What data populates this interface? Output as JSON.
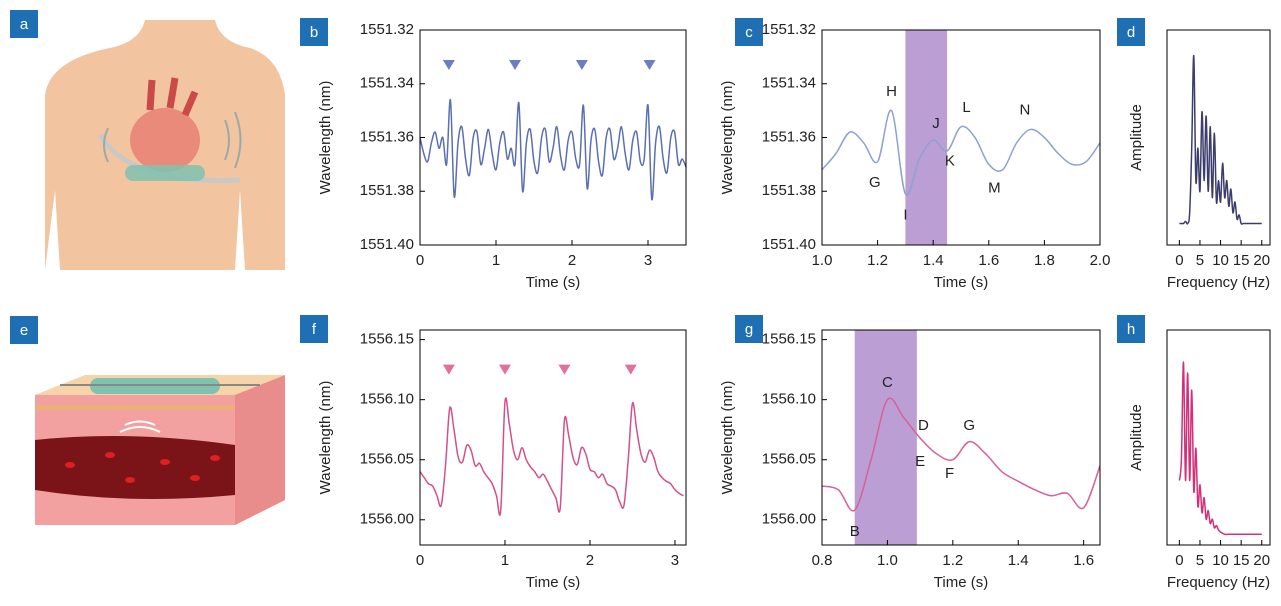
{
  "illustrations": [
    {
      "panel": "a"
    },
    {
      "panel": "e"
    }
  ],
  "chart_data": [
    {
      "panel": "b",
      "type": "line",
      "color": "#5b6fb3",
      "xlabel": "Time (s)",
      "ylabel": "Wavelength (nm)",
      "xlim": [
        0,
        3.5
      ],
      "xticks": [
        0,
        1,
        2,
        3
      ],
      "ylim": [
        1551.4,
        1551.32
      ],
      "yticks": [
        1551.32,
        1551.34,
        1551.36,
        1551.38,
        {
          "value": 1551.4,
          "label": "1551.40"
        }
      ],
      "x": [
        0,
        0.05,
        0.1,
        0.15,
        0.2,
        0.25,
        0.3,
        0.35,
        0.4,
        0.45,
        0.5,
        0.55,
        0.6,
        0.65,
        0.7,
        0.75,
        0.8,
        0.85,
        0.9,
        0.95,
        1,
        1.05,
        1.1,
        1.15,
        1.2,
        1.25,
        1.3,
        1.35,
        1.4,
        1.45,
        1.5,
        1.55,
        1.6,
        1.65,
        1.7,
        1.75,
        1.8,
        1.85,
        1.9,
        1.95,
        2,
        2.05,
        2.1,
        2.15,
        2.2,
        2.25,
        2.3,
        2.35,
        2.4,
        2.45,
        2.5,
        2.55,
        2.6,
        2.65,
        2.7,
        2.75,
        2.8,
        2.85,
        2.9,
        2.95,
        3,
        3.05,
        3.1,
        3.15,
        3.2,
        3.25,
        3.3,
        3.35,
        3.4,
        3.45,
        3.5
      ],
      "values": [
        1551.36,
        1551.366,
        1551.369,
        1551.362,
        1551.358,
        1551.364,
        1551.36,
        1551.37,
        1551.346,
        1551.382,
        1551.362,
        1551.356,
        1551.368,
        1551.374,
        1551.36,
        1551.358,
        1551.37,
        1551.364,
        1551.357,
        1551.366,
        1551.372,
        1551.362,
        1551.358,
        1551.368,
        1551.364,
        1551.37,
        1551.347,
        1551.38,
        1551.362,
        1551.357,
        1551.369,
        1551.373,
        1551.36,
        1551.357,
        1551.369,
        1551.364,
        1551.356,
        1551.367,
        1551.372,
        1551.361,
        1551.358,
        1551.368,
        1551.37,
        1551.348,
        1551.379,
        1551.361,
        1551.357,
        1551.369,
        1551.374,
        1551.36,
        1551.357,
        1551.368,
        1551.364,
        1551.356,
        1551.366,
        1551.372,
        1551.361,
        1551.358,
        1551.369,
        1551.368,
        1551.348,
        1551.383,
        1551.362,
        1551.356,
        1551.368,
        1551.373,
        1551.36,
        1551.358,
        1551.37,
        1551.368,
        1551.371
      ],
      "markers": {
        "x": [
          0.38,
          1.25,
          2.13,
          3.02
        ],
        "y": 1551.333,
        "color": "#6a7fc2"
      }
    },
    {
      "panel": "c",
      "type": "line",
      "color": "#8fa0d2",
      "xlabel": "Time (s)",
      "ylabel": "Wavelength (nm)",
      "xlim": [
        1,
        2
      ],
      "xticks": [
        {
          "value": 1,
          "label": "1.0"
        },
        1.2,
        1.4,
        1.6,
        1.8,
        {
          "value": 2,
          "label": "2.0"
        }
      ],
      "ylim": [
        1551.4,
        1551.32
      ],
      "yticks": [
        1551.32,
        1551.34,
        1551.36,
        1551.38,
        {
          "value": 1551.4,
          "label": "1551.40"
        }
      ],
      "x": [
        1,
        1.05,
        1.1,
        1.15,
        1.2,
        1.25,
        1.3,
        1.35,
        1.4,
        1.45,
        1.5,
        1.55,
        1.6,
        1.65,
        1.7,
        1.75,
        1.8,
        1.85,
        1.9,
        1.95,
        2
      ],
      "values": [
        1551.372,
        1551.366,
        1551.358,
        1551.362,
        1551.369,
        1551.35,
        1551.381,
        1551.368,
        1551.361,
        1551.365,
        1551.356,
        1551.36,
        1551.37,
        1551.372,
        1551.362,
        1551.357,
        1551.36,
        1551.366,
        1551.37,
        1551.369,
        1551.362
      ],
      "highlight": [
        1.3,
        1.45
      ],
      "highlight_color": "#a47dc6",
      "annotations": [
        {
          "text": "G",
          "x": 1.19,
          "y": 1551.377
        },
        {
          "text": "H",
          "x": 1.25,
          "y": 1551.343
        },
        {
          "text": "I",
          "x": 1.3,
          "y": 1551.389
        },
        {
          "text": "J",
          "x": 1.41,
          "y": 1551.355
        },
        {
          "text": "K",
          "x": 1.46,
          "y": 1551.369
        },
        {
          "text": "L",
          "x": 1.52,
          "y": 1551.349
        },
        {
          "text": "M",
          "x": 1.62,
          "y": 1551.379
        },
        {
          "text": "N",
          "x": 1.73,
          "y": 1551.35
        }
      ]
    },
    {
      "panel": "d",
      "type": "line",
      "color": "#3c3c6e",
      "xlabel": "Frequency (Hz)",
      "ylabel": "Amplitude",
      "xlim": [
        -3,
        22
      ],
      "xticks": [
        0,
        5,
        10,
        15,
        20
      ],
      "ylim": [
        0,
        1
      ],
      "x": [
        0,
        0.5,
        1,
        1.5,
        2,
        2.5,
        3,
        3.5,
        4,
        4.5,
        5,
        5.5,
        6,
        6.5,
        7,
        7.5,
        8,
        8.5,
        9,
        9.5,
        10,
        10.5,
        11,
        11.5,
        12,
        12.5,
        13,
        13.5,
        14,
        14.5,
        15,
        15.5,
        16,
        17,
        18,
        19,
        20
      ],
      "values": [
        0.1,
        0.1,
        0.1,
        0.11,
        0.1,
        0.15,
        0.45,
        0.88,
        0.3,
        0.45,
        0.25,
        0.62,
        0.3,
        0.6,
        0.25,
        0.55,
        0.22,
        0.52,
        0.2,
        0.3,
        0.2,
        0.38,
        0.22,
        0.3,
        0.18,
        0.26,
        0.15,
        0.2,
        0.12,
        0.14,
        0.1,
        0.1,
        0.1,
        0.1,
        0.1,
        0.1,
        0.1
      ]
    },
    {
      "panel": "f",
      "type": "line",
      "color": "#d4508a",
      "xlabel": "Time (s)",
      "ylabel": "Wavelength (nm)",
      "xlim": [
        0,
        3.13
      ],
      "xticks": [
        0,
        1,
        2,
        3
      ],
      "ylim": [
        1555.979,
        1556.158
      ],
      "yticks": [
        {
          "value": 1556,
          "label": "1556.00"
        },
        1556.05,
        {
          "value": 1556.1,
          "label": "1556.10"
        },
        1556.15
      ],
      "x": [
        0,
        0.05,
        0.1,
        0.15,
        0.2,
        0.25,
        0.3,
        0.35,
        0.4,
        0.45,
        0.5,
        0.55,
        0.6,
        0.65,
        0.7,
        0.75,
        0.8,
        0.85,
        0.9,
        0.95,
        1,
        1.05,
        1.1,
        1.15,
        1.2,
        1.25,
        1.3,
        1.35,
        1.4,
        1.45,
        1.5,
        1.55,
        1.6,
        1.65,
        1.7,
        1.75,
        1.8,
        1.85,
        1.9,
        1.95,
        2,
        2.05,
        2.1,
        2.15,
        2.2,
        2.25,
        2.3,
        2.35,
        2.4,
        2.45,
        2.5,
        2.55,
        2.6,
        2.65,
        2.7,
        2.75,
        2.8,
        2.85,
        2.9,
        2.95,
        3,
        3.05,
        3.1
      ],
      "values": [
        1556.04,
        1556.035,
        1556.03,
        1556.028,
        1556.02,
        1556.012,
        1556.045,
        1556.093,
        1556.075,
        1556.052,
        1556.048,
        1556.062,
        1556.058,
        1556.045,
        1556.047,
        1556.04,
        1556.035,
        1556.03,
        1556.02,
        1556.008,
        1556.098,
        1556.08,
        1556.058,
        1556.05,
        1556.06,
        1556.05,
        1556.044,
        1556.04,
        1556.035,
        1556.038,
        1556.032,
        1556.025,
        1556.018,
        1556.01,
        1556.083,
        1556.07,
        1556.052,
        1556.046,
        1556.06,
        1556.055,
        1556.042,
        1556.04,
        1556.035,
        1556.038,
        1556.03,
        1556.028,
        1556.025,
        1556.015,
        1556.012,
        1556.05,
        1556.097,
        1556.075,
        1556.055,
        1556.048,
        1556.058,
        1556.052,
        1556.04,
        1556.035,
        1556.032,
        1556.03,
        1556.025,
        1556.022,
        1556.02
      ],
      "markers": {
        "x": [
          0.34,
          1.0,
          1.7,
          2.48
        ],
        "y": 1556.125,
        "color": "#e0709e"
      }
    },
    {
      "panel": "g",
      "type": "line",
      "color": "#d8609a",
      "xlabel": "Time (s)",
      "ylabel": "Wavelength (nm)",
      "xlim": [
        0.8,
        1.65
      ],
      "xticks": [
        0.8,
        {
          "value": 1,
          "label": "1.0"
        },
        1.2,
        1.4,
        1.6
      ],
      "ylim": [
        1555.979,
        1556.158
      ],
      "yticks": [
        {
          "value": 1556,
          "label": "1556.00"
        },
        1556.05,
        {
          "value": 1556.1,
          "label": "1556.10"
        },
        1556.15
      ],
      "x": [
        0.8,
        0.85,
        0.9,
        0.95,
        1,
        1.05,
        1.1,
        1.15,
        1.2,
        1.25,
        1.3,
        1.35,
        1.4,
        1.45,
        1.5,
        1.55,
        1.6,
        1.65
      ],
      "values": [
        1556.028,
        1556.025,
        1556.008,
        1556.05,
        1556.1,
        1556.085,
        1556.068,
        1556.055,
        1556.05,
        1556.065,
        1556.055,
        1556.04,
        1556.032,
        1556.025,
        1556.02,
        1556.022,
        1556.01,
        1556.045
      ],
      "highlight": [
        0.9,
        1.09
      ],
      "highlight_color": "#a47dc6",
      "annotations": [
        {
          "text": "B",
          "x": 0.9,
          "y": 1555.99
        },
        {
          "text": "C",
          "x": 1.0,
          "y": 1556.114
        },
        {
          "text": "D",
          "x": 1.11,
          "y": 1556.078
        },
        {
          "text": "E",
          "x": 1.1,
          "y": 1556.048
        },
        {
          "text": "F",
          "x": 1.19,
          "y": 1556.038
        },
        {
          "text": "G",
          "x": 1.25,
          "y": 1556.078
        }
      ]
    },
    {
      "panel": "h",
      "type": "line",
      "color": "#d4307a",
      "xlabel": "Frequency (Hz)",
      "ylabel": "Amplitude",
      "xlim": [
        -3,
        22
      ],
      "xticks": [
        0,
        5,
        10,
        15,
        20
      ],
      "ylim": [
        0,
        1
      ],
      "x": [
        0,
        0.5,
        1,
        1.5,
        2,
        2.5,
        3,
        3.5,
        4,
        4.5,
        5,
        5.5,
        6,
        6.5,
        7,
        7.5,
        8,
        8.5,
        9,
        9.5,
        10,
        11,
        12,
        14,
        16,
        18,
        20
      ],
      "values": [
        0.3,
        0.4,
        0.85,
        0.3,
        0.8,
        0.3,
        0.72,
        0.25,
        0.45,
        0.18,
        0.28,
        0.15,
        0.22,
        0.12,
        0.16,
        0.1,
        0.12,
        0.08,
        0.09,
        0.07,
        0.06,
        0.05,
        0.05,
        0.05,
        0.05,
        0.05,
        0.05
      ]
    }
  ]
}
